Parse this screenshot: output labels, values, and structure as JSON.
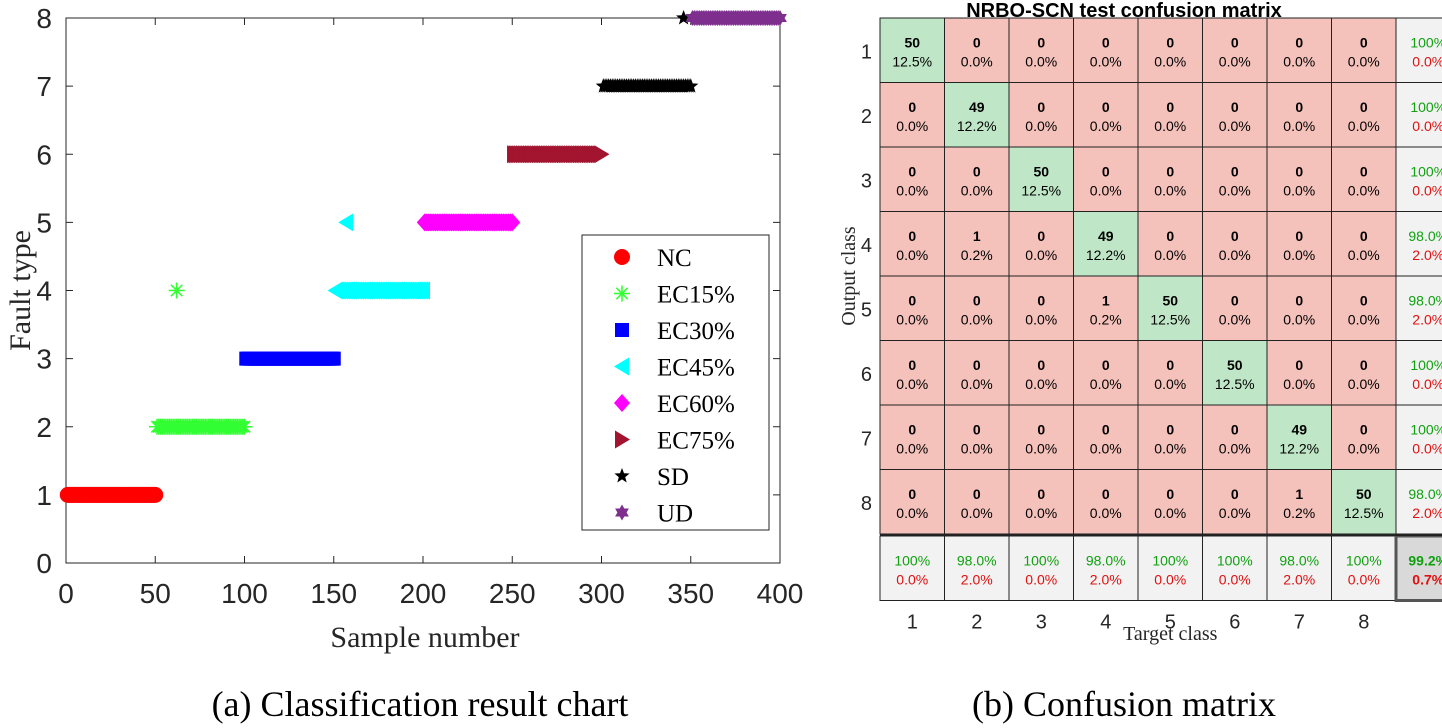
{
  "captions": {
    "left": "(a) Classification result chart",
    "right": "(b) Confusion matrix"
  },
  "chart_data": [
    {
      "type": "scatter",
      "title": "",
      "xlabel": "Sample number",
      "ylabel": "Fault type",
      "xlim": [
        0,
        400
      ],
      "ylim": [
        0,
        8
      ],
      "xticks": [
        0,
        50,
        100,
        150,
        200,
        250,
        300,
        350,
        400
      ],
      "yticks": [
        0,
        1,
        2,
        3,
        4,
        5,
        6,
        7,
        8
      ],
      "legend_position": "lower-right",
      "series": [
        {
          "name": "NC",
          "color": "#ff0000",
          "marker": "circle",
          "x_range": [
            1,
            50
          ],
          "y": 1,
          "outliers": []
        },
        {
          "name": "EC15%",
          "color": "#33ff33",
          "marker": "asterisk",
          "x_range": [
            51,
            100
          ],
          "y": 2,
          "outliers": [
            {
              "x": 62,
              "y": 4
            }
          ]
        },
        {
          "name": "EC30%",
          "color": "#0000ff",
          "marker": "square",
          "x_range": [
            101,
            150
          ],
          "y": 3,
          "outliers": []
        },
        {
          "name": "EC45%",
          "color": "#00ffff",
          "marker": "triangle-left",
          "x_range": [
            151,
            200
          ],
          "y": 4,
          "outliers": [
            {
              "x": 157,
              "y": 5
            }
          ]
        },
        {
          "name": "EC60%",
          "color": "#ff00ff",
          "marker": "diamond",
          "x_range": [
            201,
            250
          ],
          "y": 5,
          "outliers": []
        },
        {
          "name": "EC75%",
          "color": "#a2142f",
          "marker": "triangle-right",
          "x_range": [
            251,
            300
          ],
          "y": 6,
          "outliers": []
        },
        {
          "name": "SD",
          "color": "#000000",
          "marker": "star",
          "x_range": [
            301,
            350
          ],
          "y": 7,
          "outliers": [
            {
              "x": 346,
              "y": 8
            }
          ]
        },
        {
          "name": "UD",
          "color": "#7e2f8e",
          "marker": "hexagram",
          "x_range": [
            351,
            400
          ],
          "y": 8,
          "outliers": []
        }
      ]
    },
    {
      "type": "heatmap",
      "title": "NRBO-SCN test confusion matrix",
      "xlabel": "Target class",
      "ylabel": "Output class",
      "row_labels": [
        "1",
        "2",
        "3",
        "4",
        "5",
        "6",
        "7",
        "8"
      ],
      "col_labels": [
        "1",
        "2",
        "3",
        "4",
        "5",
        "6",
        "7",
        "8"
      ],
      "cells": [
        [
          {
            "count": "50",
            "pct": "12.5%"
          },
          {
            "count": "0",
            "pct": "0.0%"
          },
          {
            "count": "0",
            "pct": "0.0%"
          },
          {
            "count": "0",
            "pct": "0.0%"
          },
          {
            "count": "0",
            "pct": "0.0%"
          },
          {
            "count": "0",
            "pct": "0.0%"
          },
          {
            "count": "0",
            "pct": "0.0%"
          },
          {
            "count": "0",
            "pct": "0.0%"
          }
        ],
        [
          {
            "count": "0",
            "pct": "0.0%"
          },
          {
            "count": "49",
            "pct": "12.2%"
          },
          {
            "count": "0",
            "pct": "0.0%"
          },
          {
            "count": "0",
            "pct": "0.0%"
          },
          {
            "count": "0",
            "pct": "0.0%"
          },
          {
            "count": "0",
            "pct": "0.0%"
          },
          {
            "count": "0",
            "pct": "0.0%"
          },
          {
            "count": "0",
            "pct": "0.0%"
          }
        ],
        [
          {
            "count": "0",
            "pct": "0.0%"
          },
          {
            "count": "0",
            "pct": "0.0%"
          },
          {
            "count": "50",
            "pct": "12.5%"
          },
          {
            "count": "0",
            "pct": "0.0%"
          },
          {
            "count": "0",
            "pct": "0.0%"
          },
          {
            "count": "0",
            "pct": "0.0%"
          },
          {
            "count": "0",
            "pct": "0.0%"
          },
          {
            "count": "0",
            "pct": "0.0%"
          }
        ],
        [
          {
            "count": "0",
            "pct": "0.0%"
          },
          {
            "count": "1",
            "pct": "0.2%"
          },
          {
            "count": "0",
            "pct": "0.0%"
          },
          {
            "count": "49",
            "pct": "12.2%"
          },
          {
            "count": "0",
            "pct": "0.0%"
          },
          {
            "count": "0",
            "pct": "0.0%"
          },
          {
            "count": "0",
            "pct": "0.0%"
          },
          {
            "count": "0",
            "pct": "0.0%"
          }
        ],
        [
          {
            "count": "0",
            "pct": "0.0%"
          },
          {
            "count": "0",
            "pct": "0.0%"
          },
          {
            "count": "0",
            "pct": "0.0%"
          },
          {
            "count": "1",
            "pct": "0.2%"
          },
          {
            "count": "50",
            "pct": "12.5%"
          },
          {
            "count": "0",
            "pct": "0.0%"
          },
          {
            "count": "0",
            "pct": "0.0%"
          },
          {
            "count": "0",
            "pct": "0.0%"
          }
        ],
        [
          {
            "count": "0",
            "pct": "0.0%"
          },
          {
            "count": "0",
            "pct": "0.0%"
          },
          {
            "count": "0",
            "pct": "0.0%"
          },
          {
            "count": "0",
            "pct": "0.0%"
          },
          {
            "count": "0",
            "pct": "0.0%"
          },
          {
            "count": "50",
            "pct": "12.5%"
          },
          {
            "count": "0",
            "pct": "0.0%"
          },
          {
            "count": "0",
            "pct": "0.0%"
          }
        ],
        [
          {
            "count": "0",
            "pct": "0.0%"
          },
          {
            "count": "0",
            "pct": "0.0%"
          },
          {
            "count": "0",
            "pct": "0.0%"
          },
          {
            "count": "0",
            "pct": "0.0%"
          },
          {
            "count": "0",
            "pct": "0.0%"
          },
          {
            "count": "0",
            "pct": "0.0%"
          },
          {
            "count": "49",
            "pct": "12.2%"
          },
          {
            "count": "0",
            "pct": "0.0%"
          }
        ],
        [
          {
            "count": "0",
            "pct": "0.0%"
          },
          {
            "count": "0",
            "pct": "0.0%"
          },
          {
            "count": "0",
            "pct": "0.0%"
          },
          {
            "count": "0",
            "pct": "0.0%"
          },
          {
            "count": "0",
            "pct": "0.0%"
          },
          {
            "count": "0",
            "pct": "0.0%"
          },
          {
            "count": "1",
            "pct": "0.2%"
          },
          {
            "count": "50",
            "pct": "12.5%"
          }
        ]
      ],
      "row_summary": [
        {
          "correct": "100%",
          "error": "0.0%"
        },
        {
          "correct": "100%",
          "error": "0.0%"
        },
        {
          "correct": "100%",
          "error": "0.0%"
        },
        {
          "correct": "98.0%",
          "error": "2.0%"
        },
        {
          "correct": "98.0%",
          "error": "2.0%"
        },
        {
          "correct": "100%",
          "error": "0.0%"
        },
        {
          "correct": "100%",
          "error": "0.0%"
        },
        {
          "correct": "98.0%",
          "error": "2.0%"
        }
      ],
      "col_summary": [
        {
          "correct": "100%",
          "error": "0.0%"
        },
        {
          "correct": "98.0%",
          "error": "2.0%"
        },
        {
          "correct": "100%",
          "error": "0.0%"
        },
        {
          "correct": "98.0%",
          "error": "2.0%"
        },
        {
          "correct": "100%",
          "error": "0.0%"
        },
        {
          "correct": "100%",
          "error": "0.0%"
        },
        {
          "correct": "98.0%",
          "error": "2.0%"
        },
        {
          "correct": "100%",
          "error": "0.0%"
        }
      ],
      "overall": {
        "correct": "99.2%",
        "error": "0.7%"
      },
      "colors": {
        "diagonal": "#bfe6c6",
        "off_diagonal": "#f5c1bb",
        "summary": "#f2f2f2",
        "overall": "#d9d9d9",
        "correct_text": "#10a010",
        "error_text": "#e01010"
      }
    }
  ]
}
